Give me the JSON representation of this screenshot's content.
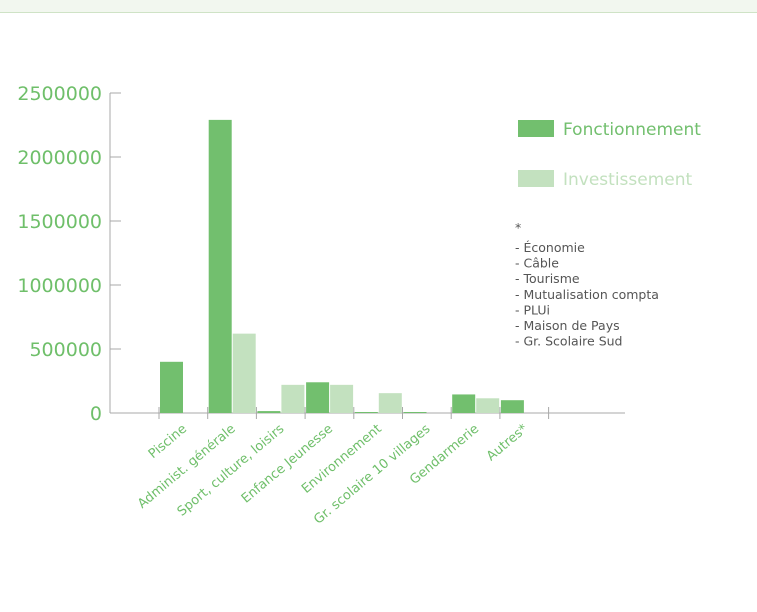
{
  "chart_data": {
    "type": "bar",
    "categories": [
      "Piscine",
      "Administ. générale",
      "Sport, culture, loisirs",
      "Enfance Jeunesse",
      "Environnement",
      "Gr. scolaire 10 villages",
      "Gendarmerie",
      "Autres*"
    ],
    "series": [
      {
        "name": "Fonctionnement",
        "color": "#72bf6e",
        "values": [
          400000,
          2290000,
          15000,
          240000,
          5000,
          5000,
          145000,
          100000
        ]
      },
      {
        "name": "Investissement",
        "color": "#c3e1bf",
        "values": [
          0,
          620000,
          220000,
          220000,
          155000,
          0,
          115000,
          0
        ]
      }
    ],
    "ylim": [
      0,
      2500000
    ],
    "yticks": [
      "0",
      "500000",
      "1000000",
      "1500000",
      "2000000",
      "2500000"
    ],
    "legend_position": "right",
    "note": {
      "title": "*",
      "lines": [
        "- Économie",
        "- Câble",
        "- Tourisme",
        "- Mutualisation compta",
        "- PLUi",
        "- Maison de Pays",
        "- Gr. Scolaire Sud"
      ]
    }
  }
}
